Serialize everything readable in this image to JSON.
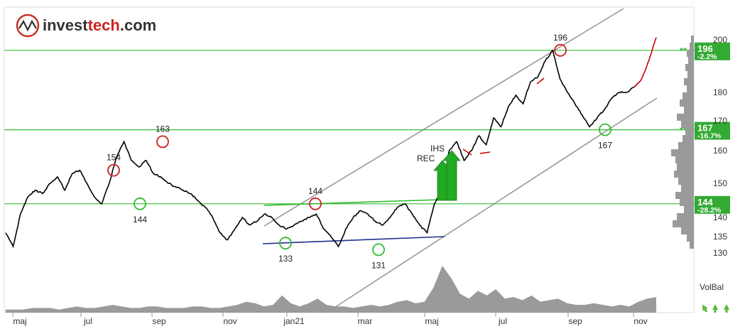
{
  "logo": {
    "text_dark": "invest",
    "text_accent": "tech",
    "text_suffix": ".com"
  },
  "colors": {
    "price": "#000000",
    "recent": "#cc0000",
    "channel": "#999999",
    "sr_line": "#33bb33",
    "support_trend": "#33bb33",
    "support_base": "#1f2f8f",
    "bottom_circle": "#33bb33",
    "top_circle": "#cc2222",
    "volbal_fill": "#9a9a9a",
    "label_bg": "#33aa33",
    "signal_arrow": "#22aa22"
  },
  "chart_data": {
    "type": "line",
    "x_labels": [
      "maj",
      "jul",
      "sep",
      "nov",
      "jan21",
      "mar",
      "maj",
      "jul",
      "sep",
      "nov"
    ],
    "ylim": [
      128,
      203
    ],
    "y_ticks": [
      130,
      135,
      140,
      150,
      160,
      170,
      180,
      200
    ],
    "series": [
      {
        "values": [
          136,
          132,
          141,
          146,
          148,
          147,
          150,
          152,
          148,
          153,
          154,
          150,
          146,
          144,
          150,
          158,
          163,
          157,
          155,
          157,
          153,
          152,
          150,
          149,
          148,
          147,
          145,
          143,
          140,
          136,
          134,
          137,
          140,
          138,
          139,
          141,
          140,
          138,
          137,
          138,
          139,
          140,
          141,
          137,
          135,
          132,
          137,
          140,
          142,
          141,
          139,
          138,
          140,
          143,
          144,
          141,
          138,
          136,
          144,
          148,
          160,
          163,
          157,
          160,
          165,
          162,
          171,
          168,
          175,
          179,
          176,
          184,
          186,
          192,
          196,
          185,
          180,
          176,
          172,
          168,
          171,
          174,
          178,
          180,
          180,
          182,
          185,
          192,
          201
        ]
      }
    ],
    "sr_levels": [
      {
        "value": 196,
        "label": "196",
        "pct": "-2.2%"
      },
      {
        "value": 167,
        "label": "167",
        "pct": "-16.7%"
      },
      {
        "value": 144,
        "label": "144",
        "pct": "-28.2%"
      }
    ],
    "annotations": {
      "tops": [
        {
          "label": "154",
          "value": 154
        },
        {
          "label": "163",
          "value": 163
        },
        {
          "label": "144",
          "value": 144
        },
        {
          "label": "196",
          "value": 196
        }
      ],
      "bottoms": [
        {
          "label": "144",
          "value": 144
        },
        {
          "label": "133",
          "value": 133
        },
        {
          "label": "131",
          "value": 131
        },
        {
          "label": "167",
          "value": 167
        }
      ],
      "signals": [
        "REC",
        "IHS"
      ]
    },
    "volume_balance": {
      "label": "VolBal",
      "values": [
        2,
        2,
        2,
        3,
        3,
        3,
        2,
        3,
        4,
        3,
        3,
        4,
        5,
        4,
        3,
        3,
        4,
        4,
        3,
        3,
        3,
        4,
        4,
        3,
        3,
        4,
        5,
        7,
        6,
        4,
        5,
        11,
        6,
        4,
        6,
        9,
        5,
        4,
        4,
        3,
        4,
        5,
        4,
        5,
        7,
        8,
        6,
        7,
        16,
        30,
        22,
        12,
        9,
        14,
        11,
        15,
        9,
        10,
        8,
        11,
        7,
        8,
        9,
        6,
        5,
        5,
        6,
        5,
        4,
        5,
        4,
        7,
        9,
        10
      ]
    }
  }
}
